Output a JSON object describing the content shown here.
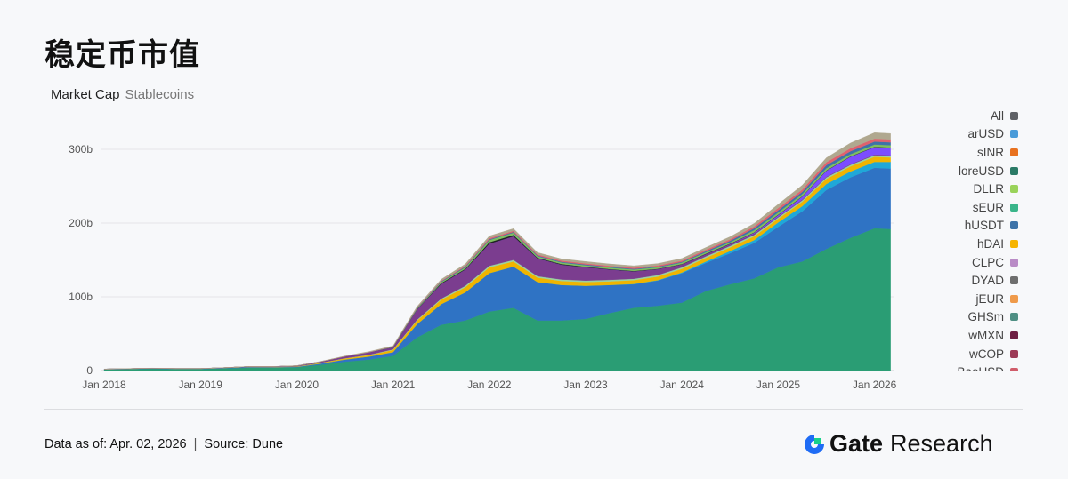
{
  "title": "稳定币市值",
  "subtitle": {
    "metric": "Market Cap",
    "category": "Stablecoins"
  },
  "chart_data": {
    "type": "area",
    "stacked": true,
    "x": [
      "2018-01",
      "2018-04",
      "2018-07",
      "2018-10",
      "2019-01",
      "2019-04",
      "2019-07",
      "2019-10",
      "2020-01",
      "2020-04",
      "2020-07",
      "2020-10",
      "2021-01",
      "2021-04",
      "2021-07",
      "2021-10",
      "2022-01",
      "2022-04",
      "2022-07",
      "2022-10",
      "2023-01",
      "2023-04",
      "2023-07",
      "2023-10",
      "2024-01",
      "2024-04",
      "2024-07",
      "2024-10",
      "2025-01",
      "2025-04",
      "2025-07",
      "2025-10",
      "2026-01",
      "2026-03"
    ],
    "x_ticks": [
      "Jan 2018",
      "Jan 2019",
      "Jan 2020",
      "Jan 2021",
      "Jan 2022",
      "Jan 2023",
      "Jan 2024",
      "Jan 2025",
      "Jan 2026"
    ],
    "y_ticks": [
      "0",
      "100b",
      "200b",
      "300b"
    ],
    "ylim": [
      0,
      330
    ],
    "y_unit": "b",
    "grid": true,
    "legend_placement": "right",
    "series": [
      {
        "color": "#2a9d74",
        "values": [
          1.5,
          2,
          2.5,
          2,
          2,
          3,
          4,
          4,
          4.5,
          8,
          12,
          15,
          20,
          45,
          62,
          68,
          80,
          85,
          68,
          68,
          70,
          78,
          85,
          88,
          92,
          108,
          117,
          125,
          140,
          148,
          165,
          180,
          193,
          192
        ]
      },
      {
        "color": "#2f73c4",
        "values": [
          0.3,
          0.4,
          0.5,
          0.5,
          0.5,
          0.6,
          0.8,
          0.6,
          0.6,
          1.5,
          3,
          4,
          5,
          18,
          28,
          38,
          52,
          56,
          52,
          48,
          45,
          38,
          32,
          34,
          40,
          38,
          42,
          48,
          55,
          68,
          80,
          82,
          82,
          82
        ]
      },
      {
        "color": "#1fa8d8",
        "values": [
          0,
          0,
          0,
          0,
          0,
          0,
          0,
          0,
          0,
          0,
          0,
          0,
          0,
          0,
          0,
          0,
          0,
          0,
          0,
          0,
          0,
          0,
          0.5,
          0.5,
          1,
          2,
          3,
          4,
          6,
          7,
          8,
          8,
          8,
          9
        ]
      },
      {
        "color": "#f0b400",
        "values": [
          0,
          0,
          0,
          0,
          0,
          0.1,
          0.2,
          0.3,
          0.5,
          1,
          1.5,
          2,
          3,
          5,
          6,
          7,
          8,
          7,
          6,
          5.5,
          5,
          5,
          5,
          5,
          5,
          5,
          5,
          5,
          5,
          6,
          7,
          7,
          7,
          6
        ]
      },
      {
        "color": "#9ad3a0",
        "values": [
          0,
          0,
          0,
          0,
          0,
          0,
          0,
          0,
          0.1,
          0.2,
          0.3,
          0.5,
          0.8,
          1,
          1.5,
          2,
          2,
          2,
          2,
          2,
          2,
          2,
          2,
          2,
          2,
          2,
          2,
          2,
          2,
          2,
          2,
          2,
          2,
          2
        ]
      },
      {
        "color": "#7b3d8f",
        "values": [
          0.3,
          0.3,
          0.3,
          0.3,
          0.3,
          0.3,
          0.4,
          0.5,
          0.8,
          1.5,
          2.5,
          3.5,
          3,
          14,
          20,
          22,
          30,
          32,
          24,
          20,
          18,
          14,
          10,
          8,
          4,
          3,
          2,
          2,
          1,
          1,
          1,
          1,
          1,
          1
        ]
      },
      {
        "color": "#7c4dff",
        "values": [
          0,
          0,
          0,
          0,
          0,
          0,
          0,
          0,
          0,
          0,
          0,
          0,
          0,
          0,
          0,
          0,
          0,
          0,
          0,
          0,
          0,
          0,
          0,
          0,
          0,
          0,
          0.5,
          1,
          2,
          4,
          8,
          10,
          10,
          10
        ]
      },
      {
        "color": "#222222",
        "values": [
          0,
          0,
          0,
          0,
          0,
          0,
          0,
          0,
          0,
          0,
          0,
          0,
          0,
          0.5,
          1,
          1,
          2,
          2,
          1,
          1,
          0.8,
          0.6,
          0.5,
          0.5,
          0.5,
          0.5,
          0.5,
          0.5,
          0.5,
          0.5,
          0.5,
          0.5,
          0.5,
          0.5
        ]
      },
      {
        "color": "#7fbf5f",
        "values": [
          0,
          0,
          0,
          0,
          0,
          0,
          0,
          0,
          0,
          0,
          0,
          0,
          0.5,
          1,
          1.5,
          2,
          3,
          3,
          2,
          2,
          2,
          2,
          2,
          2,
          2,
          2,
          2,
          3,
          3,
          3,
          3,
          3,
          3,
          3
        ]
      },
      {
        "color": "#3d73a8",
        "values": [
          0,
          0,
          0,
          0,
          0,
          0,
          0,
          0,
          0,
          0,
          0,
          0,
          0.2,
          0.5,
          0.8,
          1,
          1,
          1,
          1,
          1,
          1,
          1,
          1,
          1,
          1,
          1.5,
          2,
          2.5,
          3,
          3,
          4,
          4,
          4,
          4
        ]
      },
      {
        "color": "#e0616e",
        "values": [
          0,
          0,
          0,
          0,
          0,
          0,
          0,
          0,
          0,
          0,
          0,
          0,
          0.2,
          0.5,
          0.8,
          1,
          1.5,
          1.5,
          1.5,
          1.5,
          1.5,
          1.5,
          1.5,
          1.5,
          1.5,
          2,
          2,
          2.5,
          3,
          3,
          4,
          4,
          4,
          4
        ]
      },
      {
        "color": "#b0a88f",
        "values": [
          0.1,
          0.1,
          0.1,
          0.1,
          0.1,
          0.1,
          0.1,
          0.1,
          0.2,
          0.3,
          0.5,
          0.8,
          0.8,
          1.5,
          2,
          2.5,
          3,
          3,
          2.5,
          2.5,
          2.5,
          2.5,
          2.5,
          2.5,
          3,
          3,
          3.5,
          4,
          5,
          6,
          6,
          7,
          8,
          8
        ]
      }
    ],
    "legend": [
      {
        "label": "All",
        "color": "#5f6166"
      },
      {
        "label": "arUSD",
        "color": "#4a9bd9"
      },
      {
        "label": "sINR",
        "color": "#e8711f"
      },
      {
        "label": "loreUSD",
        "color": "#2a7a66"
      },
      {
        "label": "DLLR",
        "color": "#9ad35a"
      },
      {
        "label": "sEUR",
        "color": "#3ab58a"
      },
      {
        "label": "hUSDT",
        "color": "#3d73a8"
      },
      {
        "label": "hDAI",
        "color": "#f6b400"
      },
      {
        "label": "CLPC",
        "color": "#b98bc6"
      },
      {
        "label": "DYAD",
        "color": "#6e6e6e"
      },
      {
        "label": "jEUR",
        "color": "#ef9a4a"
      },
      {
        "label": "GHSm",
        "color": "#4f8f84"
      },
      {
        "label": "wMXN",
        "color": "#6e1f43"
      },
      {
        "label": "wCOP",
        "color": "#9c3a57"
      },
      {
        "label": "BaoUSD",
        "color": "#d05c6a"
      }
    ]
  },
  "footer": {
    "data_as_of": "Data as of: Apr. 02, 2026",
    "separator": "|",
    "source": "Source:  Dune"
  },
  "brand": {
    "name": "Gate",
    "suffix": "Research",
    "color": "#1f6cf5",
    "accent": "#18d18c"
  }
}
